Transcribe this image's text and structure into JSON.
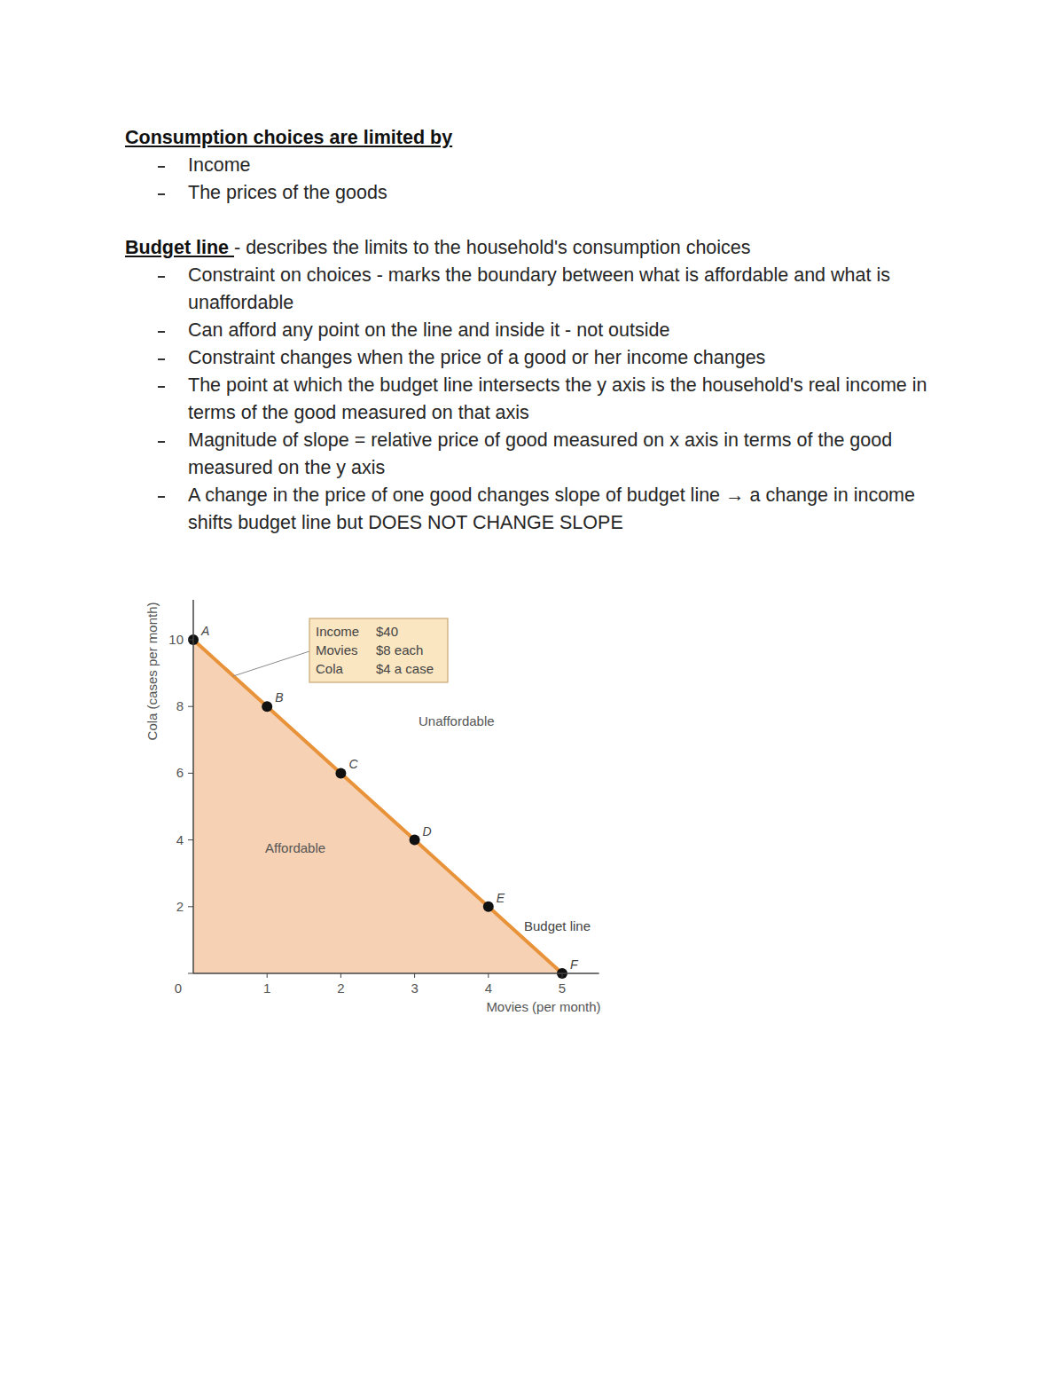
{
  "document": {
    "sections": [
      {
        "heading": "Consumption choices are limited by",
        "bullets": [
          "Income",
          "The prices of the goods"
        ]
      },
      {
        "heading": "Budget line ",
        "description": "- describes the limits to the household's consumption choices",
        "bullets": [
          "Constraint on choices - marks the boundary between what is affordable and what is unaffordable",
          "Can afford any point on the line and inside it - not outside",
          "Constraint changes when the price of a good or her income changes",
          "The point at which the budget line intersects the y axis is the household's real income in terms of the good measured on that axis",
          "Magnitude of slope = relative price of good measured on x axis in terms of the good measured on the y axis",
          "A change in the price of one good changes slope of budget line → a change in income shifts budget line but DOES NOT CHANGE SLOPE"
        ]
      }
    ]
  },
  "chart_data": {
    "type": "line",
    "x_label": "Movies (per month)",
    "y_label": "Cola (cases per month)",
    "xlim": [
      0,
      5.5
    ],
    "ylim": [
      0,
      11.2
    ],
    "xticks": [
      1,
      2,
      3,
      4,
      5
    ],
    "yticks": [
      0,
      2,
      4,
      6,
      8,
      10
    ],
    "grid": false,
    "series": [
      {
        "name": "Budget line",
        "color": "#e8923a",
        "marker": "circle",
        "x": [
          0,
          1,
          2,
          3,
          4,
          5
        ],
        "values": [
          10,
          8,
          6,
          4,
          2,
          0
        ],
        "point_labels": [
          "A",
          "B",
          "C",
          "D",
          "E",
          "F"
        ]
      }
    ],
    "annotations": [
      "Affordable",
      "Unaffordable"
    ],
    "info_box": [
      {
        "label": "Income",
        "value": "$40"
      },
      {
        "label": "Movies",
        "value": "$8 each"
      },
      {
        "label": "Cola",
        "value": "$4 a case"
      }
    ]
  }
}
